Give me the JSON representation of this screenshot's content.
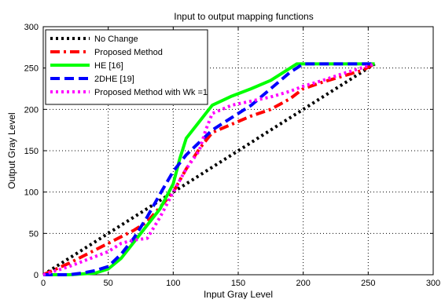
{
  "chart_data": {
    "type": "line",
    "title": "Input to output mapping functions",
    "xlabel": "Input Gray Level",
    "ylabel": "Output Gray Level",
    "xlim": [
      0,
      300
    ],
    "ylim": [
      0,
      300
    ],
    "xticks": [
      0,
      50,
      100,
      150,
      200,
      250,
      300
    ],
    "yticks": [
      0,
      50,
      100,
      150,
      200,
      250,
      300
    ],
    "grid": true,
    "grid_style": "dotted",
    "legend_position": "top-left",
    "series": [
      {
        "name": "No Change",
        "color": "#000000",
        "line_style": "dotted",
        "x": [
          0,
          255
        ],
        "y": [
          0,
          255
        ]
      },
      {
        "name": "Proposed Method",
        "color": "#ff0000",
        "line_style": "dash-dot",
        "x": [
          0,
          20,
          40,
          55,
          70,
          80,
          90,
          100,
          110,
          120,
          130,
          145,
          160,
          175,
          190,
          200,
          215,
          230,
          245,
          255
        ],
        "y": [
          0,
          14,
          30,
          42,
          54,
          64,
          82,
          100,
          128,
          152,
          172,
          182,
          192,
          200,
          213,
          225,
          233,
          240,
          247,
          255
        ]
      },
      {
        "name": "HE [16]",
        "color": "#00ff00",
        "line_style": "solid",
        "x": [
          0,
          20,
          40,
          50,
          60,
          70,
          80,
          90,
          100,
          105,
          110,
          120,
          130,
          145,
          160,
          175,
          185,
          195,
          210,
          230,
          255
        ],
        "y": [
          0,
          0,
          2,
          7,
          20,
          40,
          60,
          80,
          110,
          140,
          165,
          185,
          205,
          216,
          225,
          235,
          245,
          255,
          255,
          255,
          255
        ]
      },
      {
        "name": "2DHE [19]",
        "color": "#0000ff",
        "line_style": "dashed",
        "x": [
          0,
          20,
          30,
          40,
          50,
          60,
          70,
          80,
          90,
          100,
          110,
          120,
          130,
          145,
          160,
          175,
          190,
          200,
          215,
          230,
          255
        ],
        "y": [
          0,
          0,
          2,
          5,
          10,
          25,
          45,
          70,
          98,
          125,
          145,
          160,
          175,
          190,
          205,
          225,
          245,
          255,
          255,
          255,
          255
        ]
      },
      {
        "name": "Proposed Method with Wk =1",
        "color": "#ff00ff",
        "line_style": "dotted",
        "x": [
          0,
          20,
          40,
          50,
          60,
          70,
          80,
          90,
          100,
          110,
          120,
          125,
          130,
          145,
          160,
          175,
          190,
          200,
          215,
          230,
          255
        ],
        "y": [
          0,
          10,
          22,
          28,
          38,
          42,
          44,
          70,
          100,
          128,
          150,
          175,
          195,
          205,
          210,
          215,
          222,
          228,
          235,
          243,
          255
        ]
      }
    ]
  }
}
